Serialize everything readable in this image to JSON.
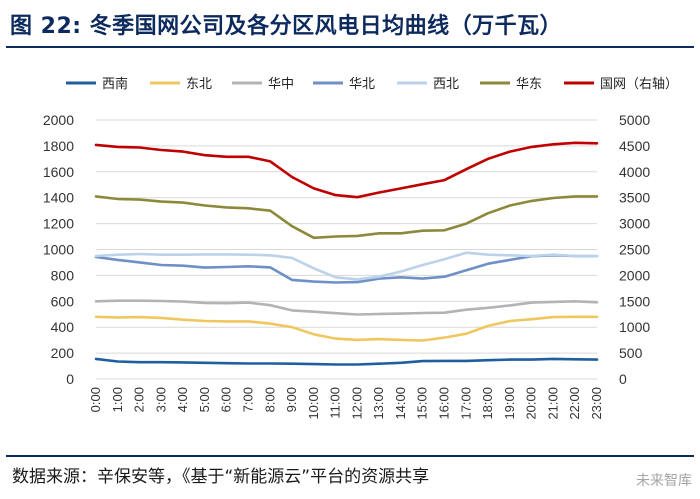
{
  "header": {
    "figure_no": "图 22:",
    "title": "冬季国网公司及各分区风电日均曲线（万千瓦）"
  },
  "footer": {
    "source": "数据来源：辛保安等，《基于“新能源云”平台的资源共享",
    "watermark": "未来智库"
  },
  "chart_data": {
    "type": "line",
    "title": "冬季国网公司及各分区风电日均曲线（万千瓦）",
    "categories": [
      "0:00",
      "1:00",
      "2:00",
      "3:00",
      "4:00",
      "5:00",
      "6:00",
      "7:00",
      "8:00",
      "9:00",
      "10:00",
      "11:00",
      "12:00",
      "13:00",
      "14:00",
      "15:00",
      "16:00",
      "17:00",
      "18:00",
      "19:00",
      "20:00",
      "21:00",
      "22:00",
      "23:00"
    ],
    "y_left": {
      "min": 0,
      "max": 2000,
      "step": 200
    },
    "y_right": {
      "min": 0,
      "max": 5000,
      "step": 500
    },
    "grid": true,
    "legend_position": "top",
    "series": [
      {
        "name": "西南",
        "color": "#1f5fa0",
        "axis": "left",
        "values": [
          155,
          135,
          130,
          130,
          128,
          125,
          122,
          120,
          120,
          118,
          115,
          112,
          112,
          118,
          125,
          138,
          140,
          140,
          145,
          150,
          150,
          155,
          152,
          150
        ]
      },
      {
        "name": "东北",
        "color": "#f0c75e",
        "axis": "left",
        "values": [
          480,
          475,
          478,
          472,
          458,
          448,
          445,
          445,
          428,
          400,
          345,
          312,
          302,
          308,
          302,
          297,
          320,
          350,
          410,
          448,
          462,
          478,
          480,
          480
        ]
      },
      {
        "name": "华中",
        "color": "#b3b3b3",
        "axis": "left",
        "values": [
          600,
          605,
          605,
          602,
          598,
          588,
          585,
          590,
          570,
          530,
          520,
          508,
          498,
          502,
          505,
          510,
          512,
          535,
          550,
          568,
          590,
          595,
          600,
          592
        ]
      },
      {
        "name": "华北",
        "color": "#6f8fc8",
        "axis": "left",
        "values": [
          942,
          920,
          900,
          880,
          875,
          860,
          865,
          870,
          862,
          765,
          752,
          745,
          748,
          775,
          785,
          775,
          790,
          840,
          890,
          920,
          948,
          955,
          950,
          948
        ]
      },
      {
        "name": "西北",
        "color": "#bcd2ea",
        "axis": "left",
        "values": [
          950,
          960,
          965,
          960,
          960,
          962,
          962,
          960,
          955,
          935,
          855,
          785,
          770,
          790,
          830,
          880,
          925,
          975,
          960,
          955,
          950,
          960,
          950,
          948
        ]
      },
      {
        "name": "华东",
        "color": "#8c8a3a",
        "axis": "left",
        "values": [
          1410,
          1390,
          1385,
          1370,
          1362,
          1340,
          1325,
          1318,
          1300,
          1180,
          1090,
          1100,
          1105,
          1125,
          1125,
          1145,
          1148,
          1200,
          1280,
          1340,
          1375,
          1398,
          1410,
          1410
        ]
      },
      {
        "name": "国网（右轴）",
        "color": "#c00000",
        "axis": "right",
        "values": [
          4520,
          4480,
          4470,
          4420,
          4390,
          4320,
          4290,
          4290,
          4200,
          3900,
          3680,
          3550,
          3510,
          3600,
          3680,
          3760,
          3840,
          4050,
          4250,
          4390,
          4480,
          4530,
          4560,
          4550
        ]
      }
    ]
  }
}
